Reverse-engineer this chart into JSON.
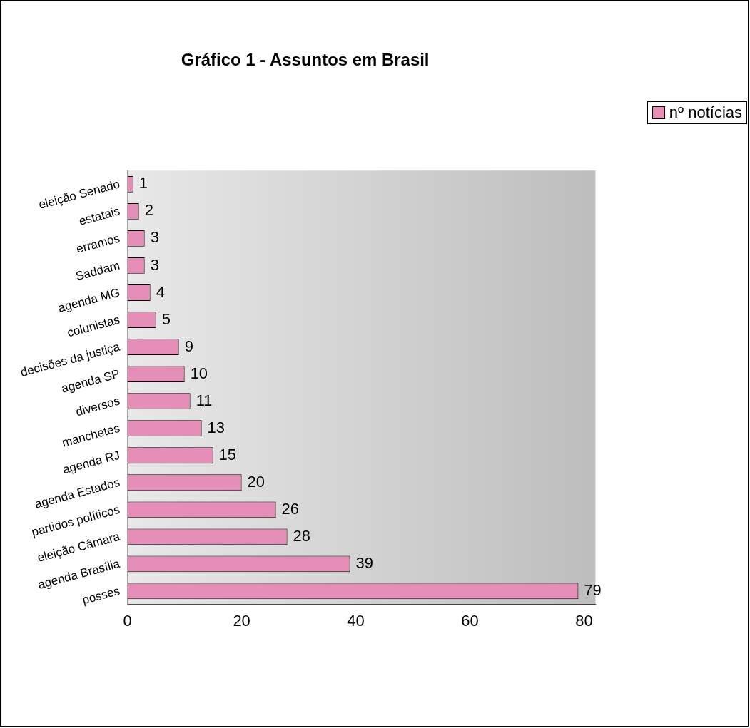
{
  "chart_data": {
    "type": "bar",
    "orientation": "horizontal",
    "title": "Gráfico 1 - Assuntos em Brasil",
    "categories": [
      "eleição Senado",
      "estatais",
      "erramos",
      "Saddam",
      "agenda MG",
      "colunistas",
      "decisões da justiça",
      "agenda SP",
      "diversos",
      "manchetes",
      "agenda RJ",
      "agenda Estados",
      "partidos políticos",
      "eleição Câmara",
      "agenda Brasília",
      "posses"
    ],
    "series": [
      {
        "name": "nº notícias",
        "color": "#e58fb8",
        "values": [
          1,
          2,
          3,
          3,
          4,
          5,
          9,
          10,
          11,
          13,
          15,
          20,
          26,
          28,
          39,
          79
        ]
      }
    ],
    "xlim": [
      0,
      82
    ],
    "xticks": [
      0,
      20,
      40,
      60,
      80
    ],
    "grid": false,
    "legend": "top right",
    "data_labels": true
  }
}
